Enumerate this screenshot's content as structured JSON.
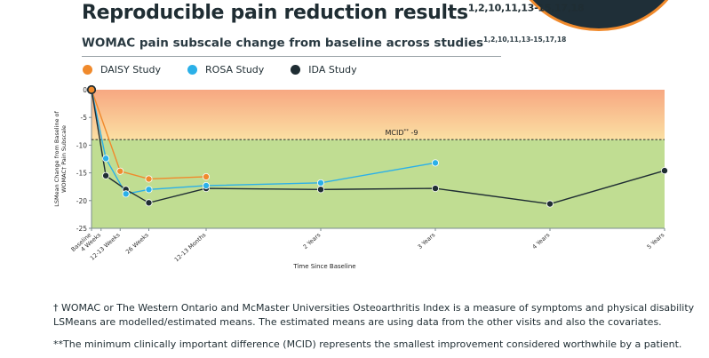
{
  "header": {
    "title": "Reproducible pain reduction results",
    "title_refs": "1,2,10,11,13-15,17,18",
    "subtitle": "WOMAC pain subscale change from baseline across studies",
    "subtitle_refs": "1,2,10,11,13-15,17,18"
  },
  "legend": {
    "items": [
      {
        "label": "DAISY Study",
        "color": "#f08a2c"
      },
      {
        "label": "ROSA Study",
        "color": "#2bb0e8"
      },
      {
        "label": "IDA Study",
        "color": "#1f2d33"
      }
    ]
  },
  "chart_data": {
    "type": "line",
    "x_unit": "months since baseline",
    "xlabel": "Time Since Baseline",
    "ylabel": [
      "LSMean Change from Baseline of",
      "WOMAC† Pain Subscale"
    ],
    "ylim": [
      -25,
      0
    ],
    "yticks": [
      0,
      -5,
      -10,
      -15,
      -20,
      -25
    ],
    "xticks": [
      {
        "label": "Baseline",
        "x": 0
      },
      {
        "label": "4 Weeks",
        "x": 1
      },
      {
        "label": "12-13 Weeks",
        "x": 3
      },
      {
        "label": "26 Weeks",
        "x": 6
      },
      {
        "label": "12-13 Months",
        "x": 12
      },
      {
        "label": "2 Years",
        "x": 24
      },
      {
        "label": "3 Years",
        "x": 36
      },
      {
        "label": "4 Years",
        "x": 48
      },
      {
        "label": "5 Years",
        "x": 60
      }
    ],
    "reference_line": {
      "label": "MCID",
      "label_sup": "**",
      "label_value": " -9",
      "y": -9
    },
    "background_bands": [
      {
        "from": 0,
        "to": -9,
        "color_top": "#f7a781",
        "color_bottom": "#fbe0a3"
      },
      {
        "from": -9,
        "to": -25,
        "color": "#c0dd92"
      }
    ],
    "series": [
      {
        "name": "DAISY Study",
        "color": "#f08a2c",
        "points": [
          {
            "x": 0,
            "y": 0
          },
          {
            "x": 3,
            "y": -14.7
          },
          {
            "x": 6,
            "y": -16.1
          },
          {
            "x": 12,
            "y": -15.7
          }
        ]
      },
      {
        "name": "ROSA Study",
        "color": "#2bb0e8",
        "points": [
          {
            "x": 0,
            "y": 0
          },
          {
            "x": 1.5,
            "y": -12.4
          },
          {
            "x": 3.6,
            "y": -18.8
          },
          {
            "x": 6,
            "y": -18
          },
          {
            "x": 12,
            "y": -17.3
          },
          {
            "x": 24,
            "y": -16.8
          },
          {
            "x": 36,
            "y": -13.2
          }
        ]
      },
      {
        "name": "IDA Study",
        "color": "#1f2d33",
        "points": [
          {
            "x": 0,
            "y": 0
          },
          {
            "x": 1.5,
            "y": -15.5
          },
          {
            "x": 3.6,
            "y": -18
          },
          {
            "x": 6,
            "y": -20.4
          },
          {
            "x": 12,
            "y": -17.8
          },
          {
            "x": 24,
            "y": -18
          },
          {
            "x": 36,
            "y": -17.8
          },
          {
            "x": 48,
            "y": -20.6
          },
          {
            "x": 60,
            "y": -14.6
          }
        ]
      }
    ]
  },
  "footnotes": {
    "womac": "† WOMAC or The Western Ontario and McMaster Universities Osteoarthritis Index is a measure of symptoms and physical disability LSMeans are modelled/estimated means. The estimated means are using data from the other visits and also the covariates.",
    "mcid": "**The minimum clinically important difference (MCID) represents the smallest improvement considered worthwhile by a patient."
  }
}
